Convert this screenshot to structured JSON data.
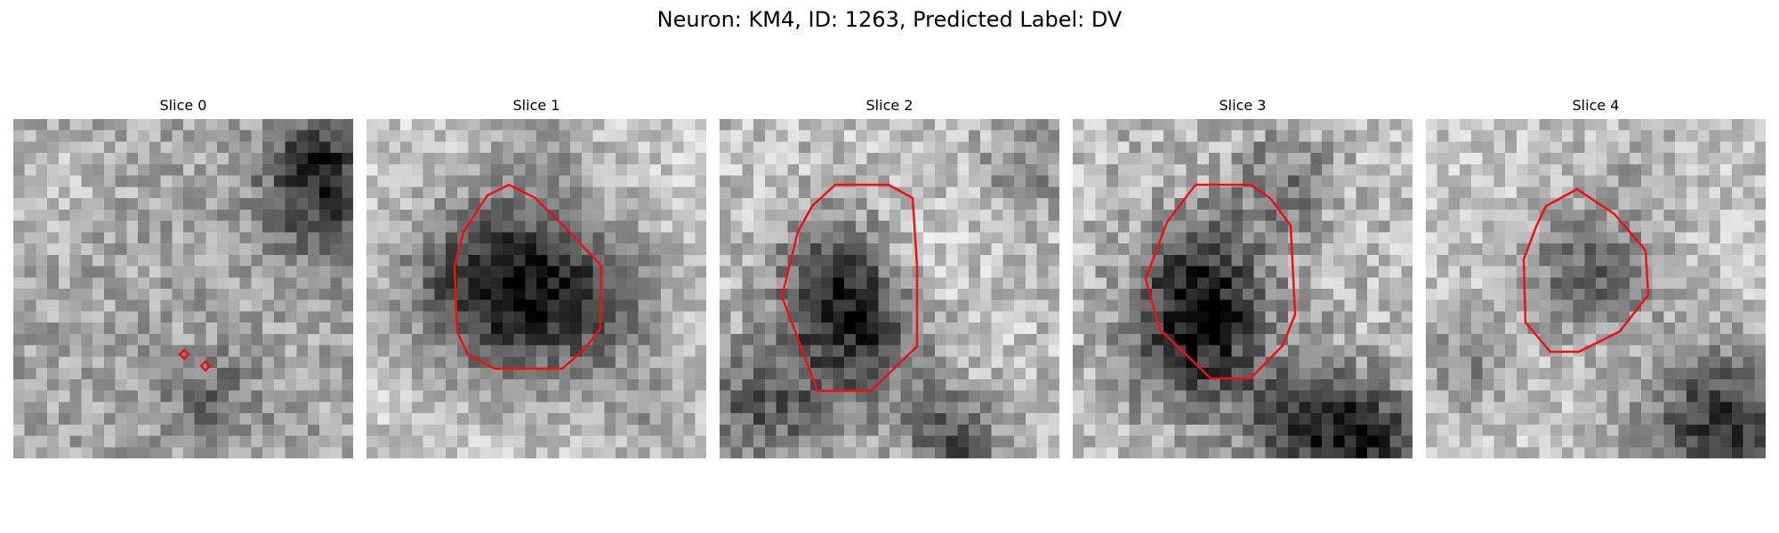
{
  "figure": {
    "suptitle": "Neuron: KM4, ID: 1263, Predicted Label: DV"
  },
  "panels": [
    {
      "title": "Slice 0"
    },
    {
      "title": "Slice 1"
    },
    {
      "title": "Slice 2"
    },
    {
      "title": "Slice 3"
    },
    {
      "title": "Slice 4"
    }
  ],
  "colors": {
    "contour": "#ee1111",
    "background": "#ffffff"
  },
  "colormap": "grayscale"
}
